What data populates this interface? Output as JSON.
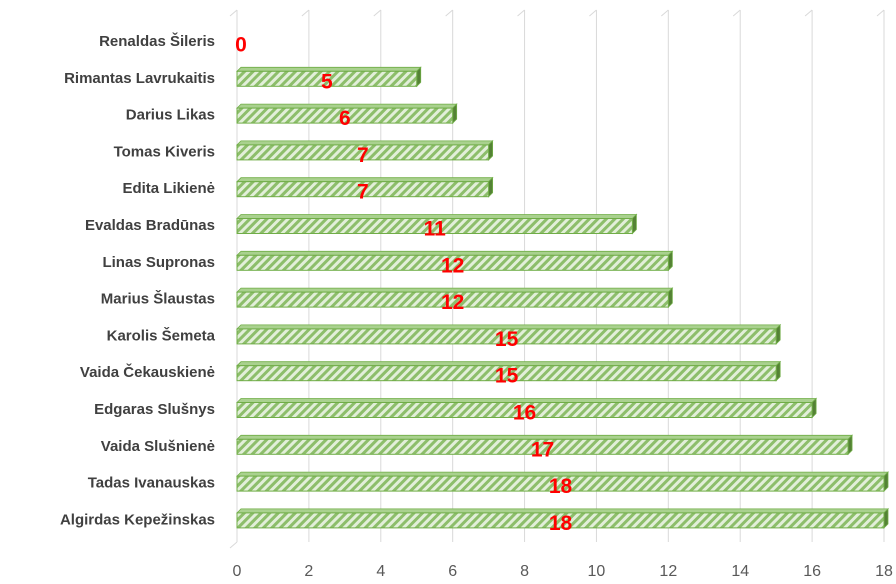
{
  "chart_data": {
    "type": "bar",
    "orientation": "horizontal",
    "categories": [
      "Renaldas Šileris",
      "Rimantas Lavrukaitis",
      "Darius Likas",
      "Tomas Kiveris",
      "Edita Likienė",
      "Evaldas Bradūnas",
      "Linas Supronas",
      "Marius Šlaustas",
      "Karolis Šemeta",
      "Vaida Čekauskienė",
      "Edgaras Slušnys",
      "Vaida Slušnienė",
      "Tadas Ivanauskas",
      "Algirdas Kepežinskas"
    ],
    "values": [
      0,
      5,
      6,
      7,
      7,
      11,
      12,
      12,
      15,
      15,
      16,
      17,
      18,
      18
    ],
    "color": "#70ad47",
    "label_color": "#ff0000",
    "xlim": [
      0,
      18
    ],
    "xticks": [
      0,
      2,
      4,
      6,
      8,
      10,
      12,
      14,
      16,
      18
    ],
    "grid": true
  }
}
